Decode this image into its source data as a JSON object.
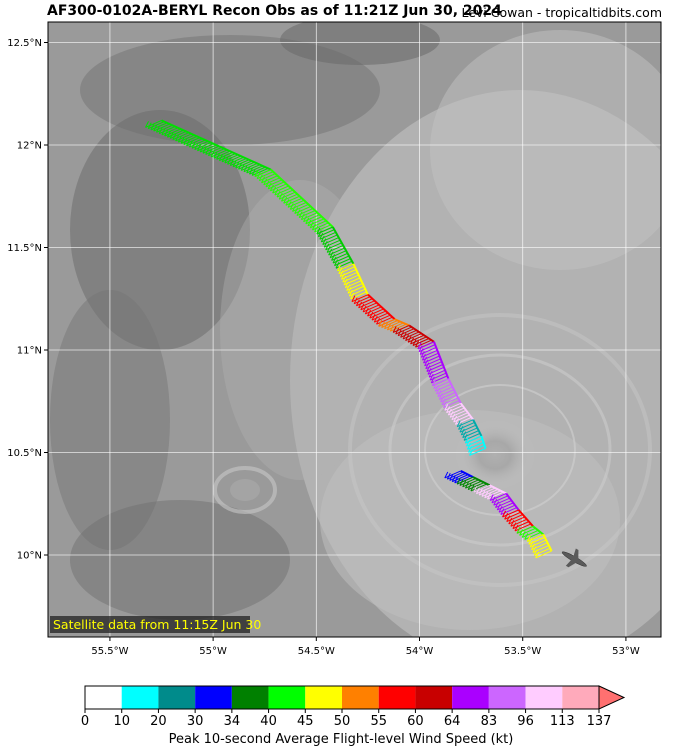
{
  "header": {
    "title": "AF300-0102A-BERYL Recon Obs as of 11:21Z Jun 30, 2024",
    "credit": "Levi Cowan - tropicaltidbits.com"
  },
  "map": {
    "satellite_caption": "Satellite data from 11:15Z Jun 30",
    "lon_range": [
      -55.8,
      -52.83
    ],
    "lat_range": [
      9.6,
      12.6
    ],
    "lon_ticks": [
      {
        "value": -55.5,
        "label": "55.5°W"
      },
      {
        "value": -55.0,
        "label": "55°W"
      },
      {
        "value": -54.5,
        "label": "54.5°W"
      },
      {
        "value": -54.0,
        "label": "54°W"
      },
      {
        "value": -53.5,
        "label": "53.5°W"
      },
      {
        "value": -53.0,
        "label": "53°W"
      }
    ],
    "lat_ticks": [
      {
        "value": 12.5,
        "label": "12.5°N"
      },
      {
        "value": 12.0,
        "label": "12°N"
      },
      {
        "value": 11.5,
        "label": "11.5°N"
      },
      {
        "value": 11.0,
        "label": "11°N"
      },
      {
        "value": 10.5,
        "label": "10.5°N"
      },
      {
        "value": 10.0,
        "label": "10°N"
      }
    ],
    "flight_track_segments": [
      {
        "lon1": -55.25,
        "lat1": 12.12,
        "lon2": -54.72,
        "lat2": 11.88,
        "color": "#00e000"
      },
      {
        "lon1": -54.72,
        "lat1": 11.88,
        "lon2": -54.42,
        "lat2": 11.6,
        "color": "#22ff00"
      },
      {
        "lon1": -54.42,
        "lat1": 11.6,
        "lon2": -54.32,
        "lat2": 11.42,
        "color": "#00cc00"
      },
      {
        "lon1": -54.32,
        "lat1": 11.42,
        "lon2": -54.25,
        "lat2": 11.27,
        "color": "#ffff00"
      },
      {
        "lon1": -54.25,
        "lat1": 11.27,
        "lon2": -54.12,
        "lat2": 11.15,
        "color": "#ff0000"
      },
      {
        "lon1": -54.12,
        "lat1": 11.15,
        "lon2": -54.05,
        "lat2": 11.12,
        "color": "#ff8000"
      },
      {
        "lon1": -54.05,
        "lat1": 11.12,
        "lon2": -53.93,
        "lat2": 11.04,
        "color": "#cc0000"
      },
      {
        "lon1": -53.93,
        "lat1": 11.04,
        "lon2": -53.86,
        "lat2": 10.86,
        "color": "#aa00ff"
      },
      {
        "lon1": -53.86,
        "lat1": 10.86,
        "lon2": -53.8,
        "lat2": 10.74,
        "color": "#cc66ff"
      },
      {
        "lon1": -53.8,
        "lat1": 10.74,
        "lon2": -53.74,
        "lat2": 10.66,
        "color": "#ffccff"
      },
      {
        "lon1": -53.74,
        "lat1": 10.66,
        "lon2": -53.7,
        "lat2": 10.58,
        "color": "#00aaaa"
      },
      {
        "lon1": -53.7,
        "lat1": 10.58,
        "lon2": -53.68,
        "lat2": 10.52,
        "color": "#00ffff"
      },
      {
        "lon1": -53.8,
        "lat1": 10.41,
        "lon2": -53.74,
        "lat2": 10.38,
        "color": "#0000ff"
      },
      {
        "lon1": -53.74,
        "lat1": 10.38,
        "lon2": -53.66,
        "lat2": 10.34,
        "color": "#008800"
      },
      {
        "lon1": -53.66,
        "lat1": 10.34,
        "lon2": -53.58,
        "lat2": 10.3,
        "color": "#ffccff"
      },
      {
        "lon1": -53.58,
        "lat1": 10.3,
        "lon2": -53.52,
        "lat2": 10.22,
        "color": "#aa00ff"
      },
      {
        "lon1": -53.52,
        "lat1": 10.22,
        "lon2": -53.45,
        "lat2": 10.14,
        "color": "#ff0000"
      },
      {
        "lon1": -53.45,
        "lat1": 10.14,
        "lon2": -53.4,
        "lat2": 10.1,
        "color": "#22ff00"
      },
      {
        "lon1": -53.4,
        "lat1": 10.1,
        "lon2": -53.36,
        "lat2": 10.02,
        "color": "#ffff00"
      }
    ],
    "aircraft": {
      "lon": -53.25,
      "lat": 9.98
    }
  },
  "colorbar": {
    "title": "Peak 10-second Average Flight-level Wind Speed (kt)",
    "bins": [
      {
        "from": 0,
        "to": 10,
        "color": "#ffffff"
      },
      {
        "from": 10,
        "to": 20,
        "color": "#00ffff"
      },
      {
        "from": 20,
        "to": 30,
        "color": "#008b8b"
      },
      {
        "from": 30,
        "to": 34,
        "color": "#0000ff"
      },
      {
        "from": 34,
        "to": 40,
        "color": "#008000"
      },
      {
        "from": 40,
        "to": 45,
        "color": "#00ff00"
      },
      {
        "from": 45,
        "to": 50,
        "color": "#ffff00"
      },
      {
        "from": 50,
        "to": 55,
        "color": "#ff8000"
      },
      {
        "from": 55,
        "to": 60,
        "color": "#ff0000"
      },
      {
        "from": 60,
        "to": 64,
        "color": "#c80000"
      },
      {
        "from": 64,
        "to": 83,
        "color": "#aa00ff"
      },
      {
        "from": 83,
        "to": 96,
        "color": "#cc66ff"
      },
      {
        "from": 96,
        "to": 113,
        "color": "#ffccff"
      },
      {
        "from": 113,
        "to": 137,
        "color": "#ffaabb"
      }
    ],
    "extend_color": "#ff7070",
    "tick_labels": [
      "0",
      "10",
      "20",
      "30",
      "34",
      "40",
      "45",
      "50",
      "55",
      "60",
      "64",
      "83",
      "96",
      "113",
      "137"
    ]
  }
}
